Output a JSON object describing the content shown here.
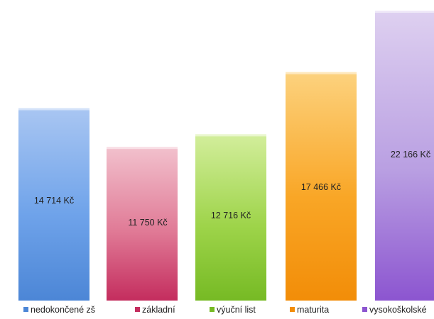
{
  "chart_data": {
    "type": "bar",
    "categories": [
      "nedokončené zš",
      "základní",
      "výuční list",
      "maturita",
      "vysokoškolské"
    ],
    "values": [
      14714,
      11750,
      12716,
      17466,
      22166
    ],
    "data_labels": [
      "14 714 Kč",
      "11 750 Kč",
      "12 716 Kč",
      "17 466 Kč",
      "22 166 Kč"
    ],
    "colors": {
      "light": [
        "#a9c6f2",
        "#f2c1cd",
        "#d3ee9c",
        "#fcd27e",
        "#ded0f0"
      ],
      "mid": [
        "#6fa3ea",
        "#e07a96",
        "#9ed44a",
        "#f9a626",
        "#b99fe2"
      ],
      "dark": [
        "#4c86d6",
        "#c42d5e",
        "#76ba24",
        "#f28d08",
        "#8c55d0"
      ]
    },
    "legend_position": "bottom",
    "grid": false,
    "ylim": [
      0,
      22166
    ]
  }
}
